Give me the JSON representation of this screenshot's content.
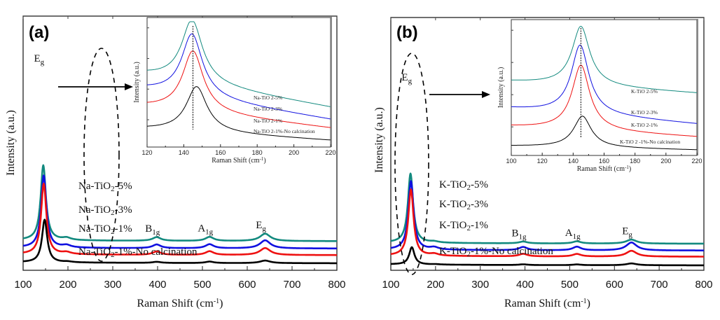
{
  "chart_data": [
    {
      "type": "line",
      "panel_label": "(a)",
      "title": "",
      "xlabel": "Raman Shift (cm-1)",
      "ylabel": "Intensity (a.u.)",
      "xlim": [
        100,
        800
      ],
      "xticks": [
        100,
        200,
        300,
        400,
        500,
        600,
        700,
        800
      ],
      "grid": false,
      "peak_labels": [
        {
          "text": "E",
          "sub": "g",
          "x": 145
        },
        {
          "text": "B",
          "sub": "1g",
          "x": 398
        },
        {
          "text": "A",
          "sub": "1g",
          "x": 516
        },
        {
          "text": "E",
          "sub": "g",
          "x": 640
        }
      ],
      "annotation": "dashed ellipse around Eg peak with arrow pointing to inset",
      "series": [
        {
          "name": "Na-TiO2-5%",
          "color": "#138a7f",
          "offset": 3.0,
          "peaks": [
            {
              "x": 145,
              "h": 10.2
            },
            {
              "x": 197,
              "h": 0.3
            },
            {
              "x": 398,
              "h": 0.5
            },
            {
              "x": 516,
              "h": 0.55
            },
            {
              "x": 640,
              "h": 1.0
            }
          ],
          "tail": 0.0
        },
        {
          "name": "Na-TiO2-3%",
          "color": "#1010e0",
          "offset": 2.0,
          "peaks": [
            {
              "x": 146,
              "h": 9.8
            },
            {
              "x": 197,
              "h": 0.3
            },
            {
              "x": 398,
              "h": 0.5
            },
            {
              "x": 516,
              "h": 0.55
            },
            {
              "x": 640,
              "h": 1.1
            }
          ],
          "tail": 0.0
        },
        {
          "name": "Na-TiO2-1%",
          "color": "#ee1111",
          "offset": 1.1,
          "peaks": [
            {
              "x": 146,
              "h": 9.6
            },
            {
              "x": 197,
              "h": 0.25
            },
            {
              "x": 398,
              "h": 0.45
            },
            {
              "x": 516,
              "h": 0.5
            },
            {
              "x": 640,
              "h": 0.95
            }
          ],
          "tail": 0.0
        },
        {
          "name": "Na-TiO2-1%-No calcination",
          "color": "#000000",
          "offset": 0.0,
          "peaks": [
            {
              "x": 148,
              "h": 5.8
            },
            {
              "x": 200,
              "h": 0.1
            },
            {
              "x": 398,
              "h": 0.15
            },
            {
              "x": 516,
              "h": 0.2
            },
            {
              "x": 640,
              "h": 0.35
            }
          ],
          "tail": 0.0
        }
      ],
      "inset": {
        "xlabel": "Raman Shift (cm-1)",
        "ylabel": "Intensity (a.u.)",
        "xlim": [
          120,
          220
        ],
        "xticks": [
          120,
          140,
          160,
          180,
          200,
          220
        ],
        "reference_line_x": 145,
        "series": [
          {
            "name": "Na-TiO2-5%",
            "color": "#138a7f",
            "peak_x": 144.5,
            "baseline_left": 0.56,
            "peak": 0.95,
            "baseline_right": 0.3
          },
          {
            "name": "Na-TiO2-3%",
            "color": "#1010e0",
            "peak_x": 144.5,
            "baseline_left": 0.44,
            "peak": 0.84,
            "baseline_right": 0.2
          },
          {
            "name": "Na-TiO2-1%",
            "color": "#ee1111",
            "peak_x": 145,
            "baseline_left": 0.3,
            "peak": 0.72,
            "baseline_right": 0.13
          },
          {
            "name": "Na-TiO2-1%-No calcination",
            "color": "#000000",
            "peak_x": 147,
            "baseline_left": 0.12,
            "peak": 0.45,
            "baseline_right": 0.03
          }
        ],
        "labels": [
          "Na-TiO 2-5%",
          "Na-TiO 2-3%",
          "Na-TiO 2-1%",
          "Na-TiO 2-1%-No calcination"
        ]
      }
    },
    {
      "type": "line",
      "panel_label": "(b)",
      "title": "",
      "xlabel": "Raman Shift (cm-1)",
      "ylabel": "Intensity (a.u.)",
      "xlim": [
        100,
        800
      ],
      "xticks": [
        100,
        200,
        300,
        400,
        500,
        600,
        700,
        800
      ],
      "grid": false,
      "peak_labels": [
        {
          "text": "E",
          "sub": "g",
          "x": 145
        },
        {
          "text": "B",
          "sub": "1g",
          "x": 396
        },
        {
          "text": "A",
          "sub": "1g",
          "x": 516
        },
        {
          "text": "E",
          "sub": "g",
          "x": 638
        }
      ],
      "annotation": "dashed ellipse around Eg peak with arrow pointing to inset",
      "series": [
        {
          "name": "K-TiO2-5%",
          "color": "#138a7f",
          "offset": 3.0,
          "peaks": [
            {
              "x": 144,
              "h": 9.6
            },
            {
              "x": 197,
              "h": 0.15
            },
            {
              "x": 396,
              "h": 0.25
            },
            {
              "x": 516,
              "h": 0.3
            },
            {
              "x": 638,
              "h": 0.55
            }
          ],
          "tail": 0.0
        },
        {
          "name": "K-TiO2-3%",
          "color": "#1010e0",
          "offset": 2.05,
          "peaks": [
            {
              "x": 145,
              "h": 9.5
            },
            {
              "x": 197,
              "h": 0.3
            },
            {
              "x": 396,
              "h": 0.45
            },
            {
              "x": 516,
              "h": 0.5
            },
            {
              "x": 638,
              "h": 1.1
            }
          ],
          "tail": 0.0
        },
        {
          "name": "K-TiO2-1%",
          "color": "#ee1111",
          "offset": 1.2,
          "peaks": [
            {
              "x": 145,
              "h": 9.2
            },
            {
              "x": 197,
              "h": 0.25
            },
            {
              "x": 396,
              "h": 0.35
            },
            {
              "x": 516,
              "h": 0.35
            },
            {
              "x": 638,
              "h": 0.8
            }
          ],
          "tail": 0.0
        },
        {
          "name": "K-TiO2-1%-No calcination",
          "color": "#000000",
          "offset": 0.0,
          "peaks": [
            {
              "x": 147,
              "h": 2.4
            },
            {
              "x": 200,
              "h": 0.05
            },
            {
              "x": 396,
              "h": 0.1
            },
            {
              "x": 516,
              "h": 0.1
            },
            {
              "x": 638,
              "h": 0.25
            }
          ],
          "tail": 0.0
        }
      ],
      "inset": {
        "xlabel": "Raman Shift (cm-1)",
        "ylabel": "Intensity (a.u.)",
        "xlim": [
          100,
          220
        ],
        "xticks": [
          100,
          120,
          140,
          160,
          180,
          200,
          220
        ],
        "reference_line_x": 145,
        "series": [
          {
            "name": "K-TiO2-5%",
            "color": "#138a7f",
            "peak_x": 145,
            "baseline_left": 0.55,
            "peak": 0.97,
            "baseline_right": 0.46
          },
          {
            "name": "K-TiO2-3%",
            "color": "#1010e0",
            "peak_x": 144.5,
            "baseline_left": 0.34,
            "peak": 0.82,
            "baseline_right": 0.22
          },
          {
            "name": "K-TiO2-1%",
            "color": "#ee1111",
            "peak_x": 145,
            "baseline_left": 0.2,
            "peak": 0.67,
            "baseline_right": 0.12
          },
          {
            "name": "K-TiO2-1%-No calcination",
            "color": "#000000",
            "peak_x": 146,
            "baseline_left": 0.05,
            "peak": 0.28,
            "baseline_right": 0.02
          }
        ],
        "labels": [
          "K-TiO 2-5%",
          "K-TiO 2-3%",
          "K-TiO 2-1%",
          "K-TiO 2 -1%-No calcination"
        ]
      }
    }
  ],
  "text": {
    "a_ylabel": "Intensity (a.u.)",
    "a_xlabel": "Raman Shift (cm-1)",
    "b_ylabel": "Intensity (a.u.)",
    "b_xlabel": "Raman Shift (cm-1)"
  }
}
